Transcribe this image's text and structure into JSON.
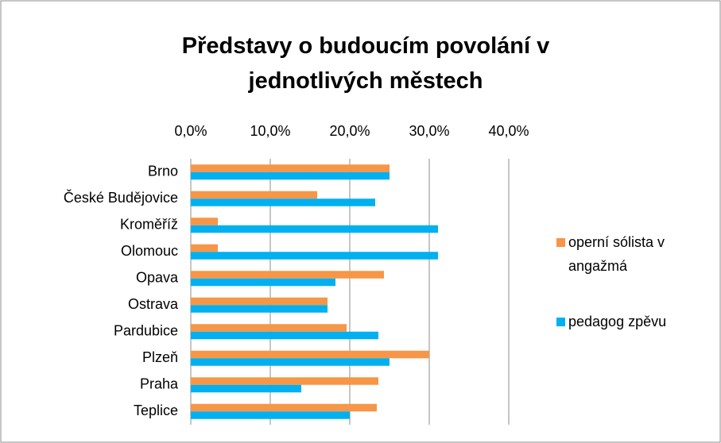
{
  "chart_data": {
    "type": "hbar",
    "title": "Představy o budoucím povolání  v jednotlivých městech",
    "categories": [
      "Brno",
      "České Budějovice",
      "Kroměříž",
      "Olomouc",
      "Opava",
      "Ostrava",
      "Pardubice",
      "Plzeň",
      "Praha",
      "Teplice"
    ],
    "series": [
      {
        "name": "operní sólista v angažmá",
        "color": "#f79646",
        "values": [
          25,
          15.9,
          3.4,
          3.4,
          24.3,
          17.2,
          19.6,
          30,
          23.6,
          23.4
        ]
      },
      {
        "name": "pedagog zpěvu",
        "color": "#00b0f0",
        "values": [
          25,
          23.2,
          31.1,
          31.1,
          18.2,
          17.2,
          23.6,
          25,
          13.9,
          20
        ]
      }
    ],
    "xlim": [
      0,
      40
    ],
    "xticks": [
      {
        "value": 0,
        "label": "0,0%"
      },
      {
        "value": 10,
        "label": "10,0%"
      },
      {
        "value": 20,
        "label": "20,0%"
      },
      {
        "value": 30,
        "label": "30,0%"
      },
      {
        "value": 40,
        "label": "40,0%"
      }
    ],
    "grid": true,
    "legend": "right"
  }
}
